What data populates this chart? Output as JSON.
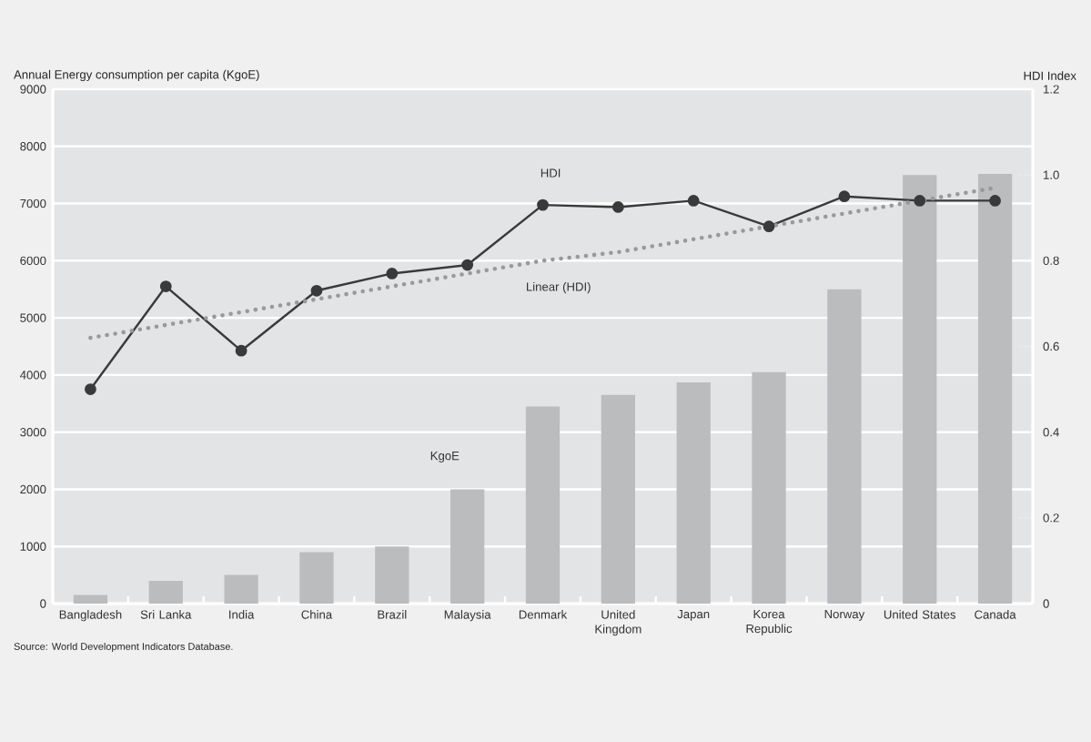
{
  "chart_data": {
    "type": "bar",
    "ylabel": "Annual Energy consumption per capita (KgoE)",
    "y2label": "HDI Index",
    "categories": [
      "Bangladesh",
      "Sri Lanka",
      "India",
      "China",
      "Brazil",
      "Malaysia",
      "Denmark",
      "United Kingdom",
      "Japan",
      "Korea Republic",
      "Norway",
      "United States",
      "Canada"
    ],
    "series": [
      {
        "name": "KgoE",
        "color": "#bbbcbe",
        "values": [
          150,
          400,
          500,
          900,
          1000,
          2000,
          3450,
          3650,
          3870,
          4050,
          5500,
          7500,
          7520
        ]
      },
      {
        "name": "HDI",
        "type": "line",
        "axis": "y2",
        "color": "#3a3a3a",
        "marker": "circle",
        "line_style": "solid",
        "values": [
          0.5,
          0.74,
          0.59,
          0.73,
          0.77,
          0.79,
          0.93,
          0.925,
          0.94,
          0.88,
          0.95,
          0.94,
          0.94
        ]
      },
      {
        "name": "Linear (HDI)",
        "type": "line",
        "axis": "y2",
        "color": "#999999",
        "marker": "none",
        "line_style": "dotted",
        "values": [
          0.62,
          0.65,
          0.68,
          0.71,
          0.74,
          0.77,
          0.8,
          0.82,
          0.85,
          0.88,
          0.91,
          0.94,
          0.97
        ]
      }
    ],
    "ylim": [
      0,
      9000
    ],
    "yticks": [
      0,
      1000,
      2000,
      3000,
      4000,
      5000,
      6000,
      7000,
      8000,
      9000
    ],
    "y2lim": [
      0,
      1.2
    ],
    "y2ticks": [
      0,
      0.2,
      0.4,
      0.6,
      0.8,
      {
        "value": 1.0,
        "label": "1.0"
      },
      1.2
    ],
    "grid": "y",
    "annotations": [
      "Source: World Development Indicators Database."
    ]
  }
}
